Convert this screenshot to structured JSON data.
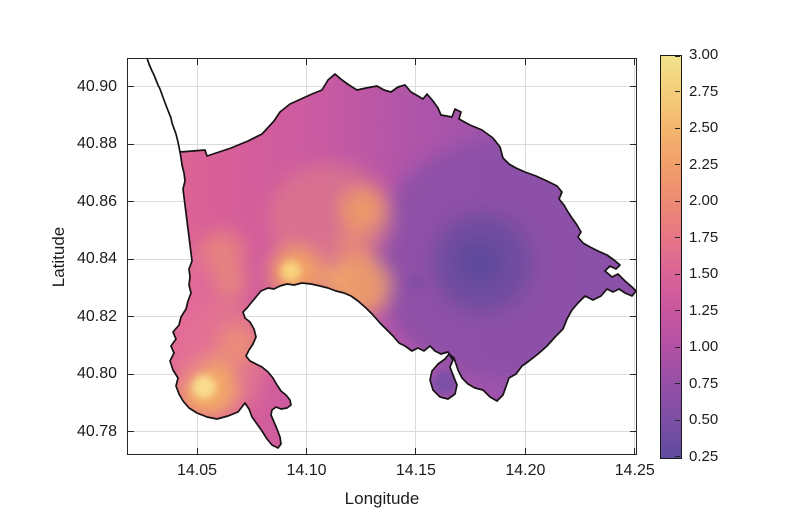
{
  "chart_data": {
    "type": "heatmap",
    "title": "",
    "xlabel": "Longitude",
    "ylabel": "Latitude",
    "xlim": [
      14.018,
      14.251
    ],
    "ylim": [
      40.772,
      40.91
    ],
    "grid": true,
    "grid_color": "#dcdcdc",
    "axis_color": "#262626",
    "x_ticks": {
      "values": [
        14.05,
        14.1,
        14.15,
        14.2,
        14.25
      ],
      "labels": [
        "14.05",
        "14.10",
        "14.15",
        "14.20",
        "14.25"
      ]
    },
    "y_ticks": {
      "values": [
        40.78,
        40.8,
        40.82,
        40.84,
        40.86,
        40.88,
        40.9
      ],
      "labels": [
        "40.78",
        "40.80",
        "40.82",
        "40.84",
        "40.86",
        "40.88",
        "40.90"
      ]
    },
    "colorbar": {
      "min": 0.25,
      "max": 3.0,
      "ticks": {
        "values": [
          0.25,
          0.5,
          0.75,
          1.0,
          1.25,
          1.5,
          1.75,
          2.0,
          2.25,
          2.5,
          2.75,
          3.0
        ],
        "labels": [
          "0.25",
          "0.50",
          "0.75",
          "1.00",
          "1.25",
          "1.50",
          "1.75",
          "2.00",
          "2.25",
          "2.50",
          "2.75",
          "3.00"
        ]
      },
      "gradient_stops": [
        {
          "value": 0.25,
          "color": "#5f4ba0"
        },
        {
          "value": 0.5,
          "color": "#7b4fa4"
        },
        {
          "value": 0.75,
          "color": "#944fa6"
        },
        {
          "value": 1.0,
          "color": "#b151a5"
        },
        {
          "value": 1.25,
          "color": "#c9569f"
        },
        {
          "value": 1.5,
          "color": "#d96397"
        },
        {
          "value": 1.75,
          "color": "#e67586"
        },
        {
          "value": 2.0,
          "color": "#ed8a74"
        },
        {
          "value": 2.25,
          "color": "#f19e6a"
        },
        {
          "value": 2.5,
          "color": "#f3b56e"
        },
        {
          "value": 2.75,
          "color": "#f4cd7a"
        },
        {
          "value": 3.0,
          "color": "#f2e28c"
        }
      ]
    },
    "sampled_points": [
      {
        "lon": 14.053,
        "lat": 40.795,
        "value": 2.9
      },
      {
        "lon": 14.093,
        "lat": 40.836,
        "value": 2.5
      },
      {
        "lon": 14.126,
        "lat": 40.857,
        "value": 2.1
      },
      {
        "lon": 14.125,
        "lat": 40.831,
        "value": 2.2
      },
      {
        "lon": 14.065,
        "lat": 40.832,
        "value": 1.9
      },
      {
        "lon": 14.068,
        "lat": 40.81,
        "value": 1.9
      },
      {
        "lon": 14.047,
        "lat": 40.85,
        "value": 1.5
      },
      {
        "lon": 14.097,
        "lat": 40.885,
        "value": 1.3
      },
      {
        "lon": 14.15,
        "lat": 40.832,
        "value": 0.9
      },
      {
        "lon": 14.18,
        "lat": 40.839,
        "value": 0.45
      },
      {
        "lon": 14.212,
        "lat": 40.878,
        "value": 0.85
      },
      {
        "lon": 14.23,
        "lat": 40.825,
        "value": 0.9
      },
      {
        "lon": 14.163,
        "lat": 40.797,
        "value": 0.6
      },
      {
        "lon": 14.175,
        "lat": 40.808,
        "value": 0.8
      }
    ]
  }
}
